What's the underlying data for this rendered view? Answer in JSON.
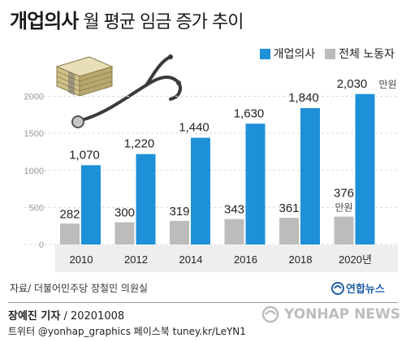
{
  "title": {
    "bold": "개업의사",
    "rest": " 월 평균 임금 증가 추이"
  },
  "legend": {
    "doctor": "개업의사",
    "worker": "전체 노동자"
  },
  "colors": {
    "doctor": "#1e90d8",
    "worker": "#bcbcbc",
    "axis_text": "#9a9a9a",
    "grid": "#d9d9d9"
  },
  "source": "자료/ 더불어민주당 장철민 의원실",
  "credit": {
    "reporter": "장예진 기자",
    "date": " / 20201008"
  },
  "sns": "트위터 @yonhap_graphics  페이스북 tuney.kr/LeYN1",
  "logos": {
    "primary": "연합뉴스",
    "watermark": "YONHAP NEWS",
    "watermark_icon": "yonhap-globe-icon"
  },
  "chart_data": {
    "type": "bar",
    "categories": [
      "2010",
      "2012",
      "2014",
      "2016",
      "2018",
      "2020년"
    ],
    "series": [
      {
        "name": "개업의사",
        "values": [
          1070,
          1220,
          1440,
          1630,
          1840,
          2030
        ]
      },
      {
        "name": "전체 노동자",
        "values": [
          282,
          300,
          319,
          343,
          361,
          376
        ]
      }
    ],
    "doctor_labels": [
      "1,070",
      "1,220",
      "1,440",
      "1,630",
      "1,840",
      "2,030"
    ],
    "worker_labels": [
      "282",
      "300",
      "319",
      "343",
      "361",
      "376"
    ],
    "unit_label": "만원",
    "y_ticks": [
      0,
      500,
      1000,
      1500,
      2000
    ],
    "y_tick_labels": [
      "0",
      "500",
      "1000",
      "1500",
      "2000"
    ],
    "ylim": [
      0,
      2100
    ],
    "grid": true,
    "legend_position": "top-right"
  }
}
